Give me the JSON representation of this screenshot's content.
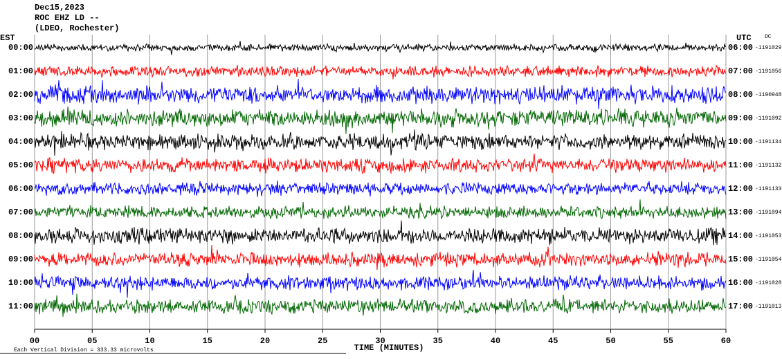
{
  "chart_data": {
    "type": "helicorder",
    "title": "Dec15,2023",
    "subtitle": "ROC EHZ LD --",
    "station": "(LDEO, Rochester)",
    "left_axis_title": "EST",
    "right_axis_title": "UTC",
    "right_axis_note": "DC",
    "xlabel": "TIME (MINUTES)",
    "footnote": "Each Vertical Division =  333.33 microvolts",
    "xlim": [
      0,
      60
    ],
    "xticks": [
      {
        "value": 0,
        "label": "00"
      },
      {
        "value": 5,
        "label": "05"
      },
      10,
      15,
      20,
      25,
      30,
      35,
      40,
      45,
      50,
      55,
      60
    ],
    "grid": true,
    "rows": [
      {
        "est": "00:00",
        "utc": "06:00",
        "count": "-1191029",
        "color": "#000000"
      },
      {
        "est": "01:00",
        "utc": "07:00",
        "count": "-1191056",
        "color": "#ff0000"
      },
      {
        "est": "02:00",
        "utc": "08:00",
        "count": "-1190948",
        "color": "#0000ff"
      },
      {
        "est": "03:00",
        "utc": "09:00",
        "count": "-1191092",
        "color": "#006600"
      },
      {
        "est": "04:00",
        "utc": "10:00",
        "count": "-1191134",
        "color": "#000000"
      },
      {
        "est": "05:00",
        "utc": "11:00",
        "count": "-1191132",
        "color": "#ff0000"
      },
      {
        "est": "06:00",
        "utc": "12:00",
        "count": "-1191133",
        "color": "#0000ff"
      },
      {
        "est": "07:00",
        "utc": "13:00",
        "count": "-1191094",
        "color": "#006600"
      },
      {
        "est": "08:00",
        "utc": "14:00",
        "count": "-1191053",
        "color": "#000000"
      },
      {
        "est": "09:00",
        "utc": "15:00",
        "count": "-1191054",
        "color": "#ff0000"
      },
      {
        "est": "10:00",
        "utc": "16:00",
        "count": "-1191028",
        "color": "#0000ff"
      },
      {
        "est": "11:00",
        "utc": "17:00",
        "count": "-1191013",
        "color": "#006600"
      }
    ]
  }
}
